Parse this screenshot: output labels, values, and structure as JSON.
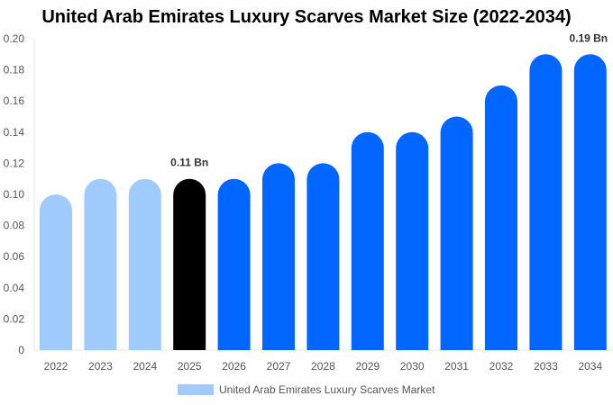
{
  "chart_data": {
    "type": "bar",
    "title": "United Arab Emirates Luxury Scarves Market Size (2022-2034)",
    "categories": [
      "2022",
      "2023",
      "2024",
      "2025",
      "2026",
      "2027",
      "2028",
      "2029",
      "2030",
      "2031",
      "2032",
      "2033",
      "2034"
    ],
    "series": [
      {
        "name": "United Arab Emirates Luxury Scarves Market",
        "values": [
          0.1,
          0.11,
          0.11,
          0.11,
          0.11,
          0.12,
          0.12,
          0.14,
          0.14,
          0.15,
          0.17,
          0.19,
          0.19
        ]
      }
    ],
    "bar_colors": [
      "#a0cbfd",
      "#a0cbfd",
      "#a0cbfd",
      "#000000",
      "#0066ff",
      "#0066ff",
      "#0066ff",
      "#0066ff",
      "#0066ff",
      "#0066ff",
      "#0066ff",
      "#0066ff",
      "#0066ff"
    ],
    "data_labels": [
      {
        "category": "2025",
        "text": "0.11 Bn"
      },
      {
        "category": "2034",
        "text": "0.19 Bn"
      }
    ],
    "ylim": [
      0,
      0.2
    ],
    "yticks": [
      "0",
      "0.02",
      "0.04",
      "0.06",
      "0.08",
      "0.10",
      "0.12",
      "0.14",
      "0.16",
      "0.18",
      "0.20"
    ],
    "grid": false,
    "legend_position": "bottom",
    "legend_color": "#a0cbfd"
  }
}
